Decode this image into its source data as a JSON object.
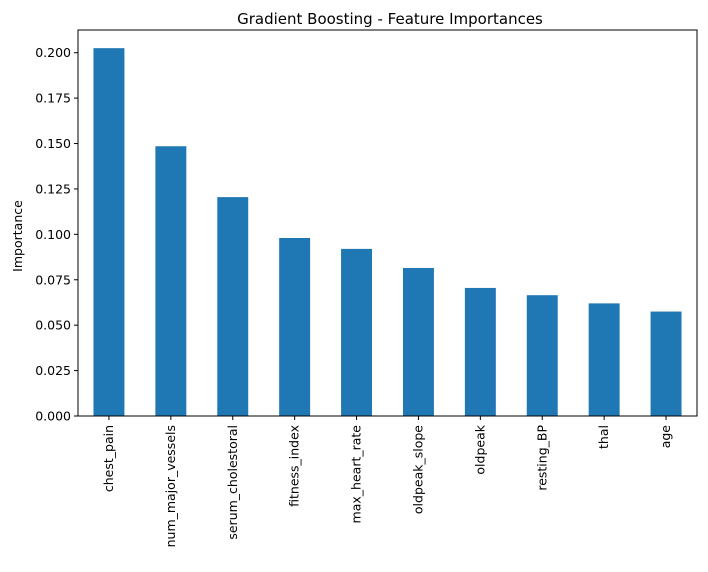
{
  "chart_data": {
    "type": "bar",
    "title": "Gradient Boosting - Feature Importances",
    "xlabel": "",
    "ylabel": "Importance",
    "categories": [
      "chest_pain",
      "num_major_vessels",
      "serum_cholestoral",
      "fitness_index",
      "max_heart_rate",
      "oldpeak_slope",
      "oldpeak",
      "resting_BP",
      "thal",
      "age"
    ],
    "values": [
      0.2025,
      0.1485,
      0.1205,
      0.098,
      0.092,
      0.0815,
      0.0705,
      0.0665,
      0.062,
      0.0575
    ],
    "ylim": [
      0,
      0.2125
    ],
    "yticks": [
      "0.000",
      "0.025",
      "0.050",
      "0.075",
      "0.100",
      "0.125",
      "0.150",
      "0.175",
      "0.200"
    ],
    "grid": false,
    "legend": "none",
    "bar_color": "#1f77b4"
  }
}
